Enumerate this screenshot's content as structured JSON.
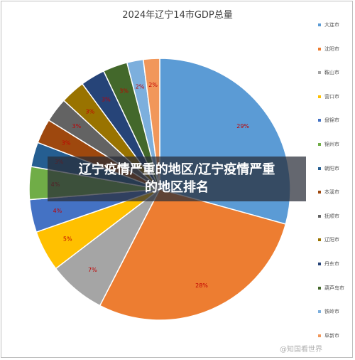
{
  "chart_data": {
    "type": "pie",
    "title": "2024年辽宁14市GDP总量",
    "categories": [
      "大连市",
      "沈阳市",
      "鞍山市",
      "营口市",
      "盘锦市",
      "锦州市",
      "朝阳市",
      "本溪市",
      "抚顺市",
      "辽阳市",
      "丹东市",
      "葫芦岛市",
      "铁岭市",
      "阜新市"
    ],
    "values": [
      29,
      28,
      7,
      5,
      4,
      4,
      3,
      3,
      3,
      3,
      3,
      3,
      2,
      2
    ],
    "value_labels": [
      "29%",
      "28%",
      "7%",
      "5%",
      "4%",
      "4%",
      "3%",
      "3%",
      "3%",
      "3%",
      "3%",
      "3%",
      "2%",
      "2%"
    ],
    "colors": [
      "#5b9bd5",
      "#ed7d31",
      "#a5a5a5",
      "#ffc000",
      "#4472c4",
      "#70ad47",
      "#255e91",
      "#9e480e",
      "#636363",
      "#997300",
      "#264478",
      "#43682b",
      "#7cafdd",
      "#f1975a"
    ],
    "legend_position": "right",
    "legend_labels": [
      "大连市",
      "沈阳市",
      "鞍山市",
      "营口市",
      "盘锦市",
      "锦州市",
      "朝阳市",
      "本溪市",
      "抚顺市",
      "辽阳市",
      "丹东市",
      "葫芦岛市",
      "铁岭市",
      "阜新市"
    ]
  },
  "overlay": {
    "headline_line1": "辽宁疫情严重的地区/辽宁疫情严重",
    "headline_line2": "的地区排名"
  },
  "watermark": "@知国看世界"
}
